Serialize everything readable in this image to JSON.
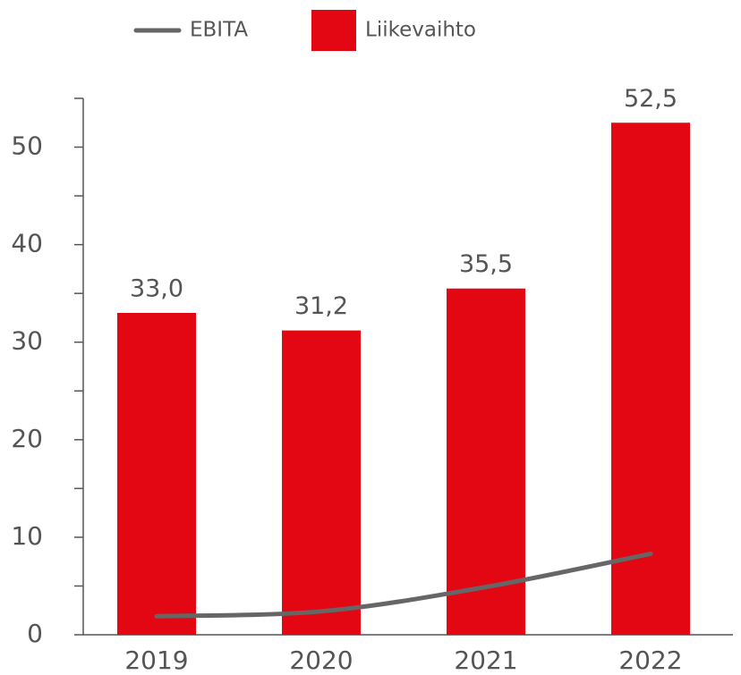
{
  "chart_data": {
    "type": "bar",
    "categories": [
      "2019",
      "2020",
      "2021",
      "2022"
    ],
    "series": [
      {
        "name": "Liikevaihto",
        "type": "bar",
        "color": "#e30613",
        "values": [
          33.0,
          31.2,
          35.5,
          52.5
        ],
        "value_labels": [
          "33,0",
          "31,2",
          "35,5",
          "52,5"
        ]
      },
      {
        "name": "EBITA",
        "type": "line",
        "color": "#666666",
        "values": [
          1.9,
          2.4,
          4.9,
          8.3
        ]
      }
    ],
    "ylim": [
      0,
      55
    ],
    "yticks": [
      0,
      10,
      20,
      30,
      40,
      50
    ],
    "yminorticks": [
      5,
      15,
      25,
      35,
      45,
      55
    ],
    "legend": "top"
  }
}
